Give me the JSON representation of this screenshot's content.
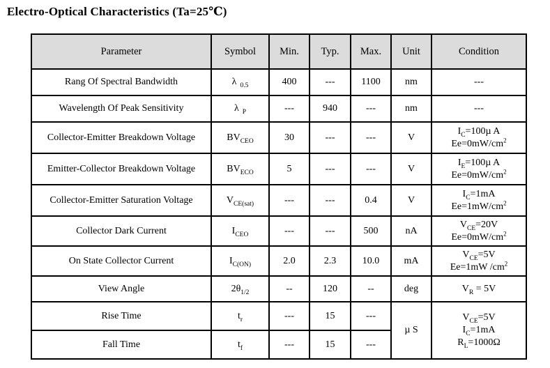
{
  "title": "Electro-Optical Characteristics (Ta=25℃)",
  "table": {
    "headers": [
      "Parameter",
      "Symbol",
      "Min.",
      "Typ.",
      "Max.",
      "Unit",
      "Condition"
    ],
    "header_bg": "#dcdcdc",
    "border_color": "#000000",
    "rows": [
      {
        "parameter": "Rang Of Spectral Bandwidth",
        "symbol": {
          "base": "λ",
          "sub": "0.5",
          "gap": true
        },
        "min": "400",
        "typ": "---",
        "max": "1100",
        "unit": {
          "text": "nm"
        },
        "condition": {
          "lines": [
            [
              {
                "t": "---"
              }
            ]
          ]
        }
      },
      {
        "parameter": "Wavelength Of Peak Sensitivity",
        "symbol": {
          "base": "λ",
          "sub": "P",
          "gap": true
        },
        "min": "---",
        "typ": "940",
        "max": "---",
        "unit": {
          "text": "nm"
        },
        "condition": {
          "lines": [
            [
              {
                "t": "---"
              }
            ]
          ]
        }
      },
      {
        "parameter": "Collector-Emitter Breakdown Voltage",
        "symbol": {
          "base": "BV",
          "sub": "CEO"
        },
        "min": "30",
        "typ": "---",
        "max": "---",
        "unit": {
          "text": "V"
        },
        "condition": {
          "lines": [
            [
              {
                "t": "I"
              },
              {
                "t": "C",
                "v": "sub"
              },
              {
                "t": "=100µ A"
              }
            ],
            [
              {
                "t": "Ee=0mW/cm"
              },
              {
                "t": "2",
                "v": "sup"
              }
            ]
          ]
        }
      },
      {
        "parameter": "Emitter-Collector Breakdown Voltage",
        "symbol": {
          "base": "BV",
          "sub": "ECO"
        },
        "min": "5",
        "typ": "---",
        "max": "---",
        "unit": {
          "text": "V"
        },
        "condition": {
          "lines": [
            [
              {
                "t": "I"
              },
              {
                "t": "E",
                "v": "sub"
              },
              {
                "t": "=100µ A"
              }
            ],
            [
              {
                "t": "Ee=0mW/cm"
              },
              {
                "t": "2",
                "v": "sup"
              }
            ]
          ]
        }
      },
      {
        "parameter": "Collector-Emitter Saturation Voltage",
        "symbol": {
          "base": "V",
          "sub": "CE(sat)"
        },
        "min": "---",
        "typ": "---",
        "max": "0.4",
        "unit": {
          "text": "V"
        },
        "condition": {
          "lines": [
            [
              {
                "t": "I"
              },
              {
                "t": "C",
                "v": "sub"
              },
              {
                "t": "=1mA"
              }
            ],
            [
              {
                "t": "Ee=1mW/cm"
              },
              {
                "t": "2",
                "v": "sup"
              }
            ]
          ]
        }
      },
      {
        "parameter": "Collector Dark Current",
        "symbol": {
          "base": "I",
          "sub": "CEO"
        },
        "min": "---",
        "typ": "---",
        "max": "500",
        "unit": {
          "text": "nA"
        },
        "condition": {
          "lines": [
            [
              {
                "t": "V"
              },
              {
                "t": "CE",
                "v": "sub"
              },
              {
                "t": "=20V"
              }
            ],
            [
              {
                "t": "Ee=0mW/cm"
              },
              {
                "t": "2",
                "v": "sup"
              }
            ]
          ]
        }
      },
      {
        "parameter": "On State Collector Current",
        "symbol": {
          "base": "I",
          "sub": "C(ON)"
        },
        "min": "2.0",
        "typ": "2.3",
        "max": "10.0",
        "unit": {
          "text": "mA"
        },
        "condition": {
          "lines": [
            [
              {
                "t": "V"
              },
              {
                "t": "CE",
                "v": "sub"
              },
              {
                "t": "=5V"
              }
            ],
            [
              {
                "t": "Ee=1mW /cm"
              },
              {
                "t": "2",
                "v": "sup"
              }
            ]
          ]
        }
      },
      {
        "parameter": "View Angle",
        "symbol": {
          "base": "2θ",
          "sub": "1/2"
        },
        "min": "--",
        "typ": "120",
        "max": "--",
        "unit": {
          "text": "deg"
        },
        "condition": {
          "lines": [
            [
              {
                "t": "V"
              },
              {
                "t": "R",
                "v": "sub"
              },
              {
                "t": " = 5V"
              }
            ]
          ]
        }
      },
      {
        "parameter": "Rise Time",
        "symbol": {
          "base": "t",
          "sub": "r"
        },
        "min": "---",
        "typ": "15",
        "max": "---",
        "unit": {
          "text": "µ S",
          "rowspan": 2
        },
        "condition": {
          "rowspan": 2,
          "lines": [
            [
              {
                "t": "V"
              },
              {
                "t": "CE",
                "v": "sub"
              },
              {
                "t": "=5V"
              }
            ],
            [
              {
                "t": "I"
              },
              {
                "t": "C",
                "v": "sub"
              },
              {
                "t": "=1mA"
              }
            ],
            [
              {
                "t": "R"
              },
              {
                "t": "L",
                "v": "sub"
              },
              {
                "t": "=1000Ω"
              }
            ]
          ]
        }
      },
      {
        "parameter": "Fall Time",
        "symbol": {
          "base": "t",
          "sub": "f"
        },
        "min": "---",
        "typ": "15",
        "max": "---",
        "unit": null,
        "condition": null
      }
    ]
  }
}
